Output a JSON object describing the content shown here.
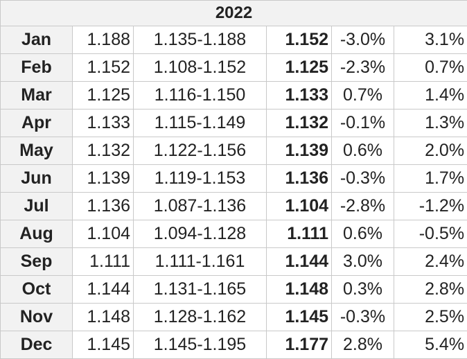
{
  "table": {
    "year": "2022",
    "rows": [
      {
        "month": "Jan",
        "open": "1.188",
        "range": "1.135-1.188",
        "close": "1.152",
        "mo": "-3.0%",
        "total": "3.1%"
      },
      {
        "month": "Feb",
        "open": "1.152",
        "range": "1.108-1.152",
        "close": "1.125",
        "mo": "-2.3%",
        "total": "0.7%"
      },
      {
        "month": "Mar",
        "open": "1.125",
        "range": "1.116-1.150",
        "close": "1.133",
        "mo": "0.7%",
        "total": "1.4%"
      },
      {
        "month": "Apr",
        "open": "1.133",
        "range": "1.115-1.149",
        "close": "1.132",
        "mo": "-0.1%",
        "total": "1.3%"
      },
      {
        "month": "May",
        "open": "1.132",
        "range": "1.122-1.156",
        "close": "1.139",
        "mo": "0.6%",
        "total": "2.0%"
      },
      {
        "month": "Jun",
        "open": "1.139",
        "range": "1.119-1.153",
        "close": "1.136",
        "mo": "-0.3%",
        "total": "1.7%"
      },
      {
        "month": "Jul",
        "open": "1.136",
        "range": "1.087-1.136",
        "close": "1.104",
        "mo": "-2.8%",
        "total": "-1.2%"
      },
      {
        "month": "Aug",
        "open": "1.104",
        "range": "1.094-1.128",
        "close": "1.111",
        "mo": "0.6%",
        "total": "-0.5%"
      },
      {
        "month": "Sep",
        "open": "1.111",
        "range": "1.111-1.161",
        "close": "1.144",
        "mo": "3.0%",
        "total": "2.4%"
      },
      {
        "month": "Oct",
        "open": "1.144",
        "range": "1.131-1.165",
        "close": "1.148",
        "mo": "0.3%",
        "total": "2.8%"
      },
      {
        "month": "Nov",
        "open": "1.148",
        "range": "1.128-1.162",
        "close": "1.145",
        "mo": "-0.3%",
        "total": "2.5%"
      },
      {
        "month": "Dec",
        "open": "1.145",
        "range": "1.145-1.195",
        "close": "1.177",
        "mo": "2.8%",
        "total": "5.4%"
      }
    ]
  },
  "colors": {
    "border": "#c9c9c9",
    "header_bg": "#f2f2f2",
    "text": "#222222"
  }
}
